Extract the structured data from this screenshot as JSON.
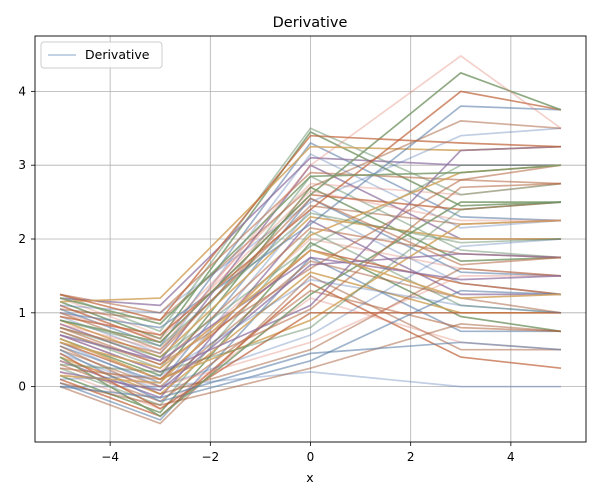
{
  "chart_data": {
    "type": "line",
    "title": "Derivative",
    "xlabel": "x",
    "ylabel": "",
    "xlim": [
      -5.5,
      5.5
    ],
    "ylim": [
      -0.75,
      4.75
    ],
    "xticks": [
      -4,
      -2,
      0,
      2,
      4
    ],
    "yticks": [
      0,
      1,
      2,
      3,
      4
    ],
    "xtick_labels": [
      "−4",
      "−2",
      "0",
      "2",
      "4"
    ],
    "ytick_labels": [
      "0",
      "1",
      "2",
      "3",
      "4"
    ],
    "grid": true,
    "legend": {
      "placement": "top-left",
      "entries": [
        {
          "label": "Derivative",
          "color": "#b0c4de"
        }
      ]
    },
    "palette": [
      "#4c72b0",
      "#a0522d",
      "#5b7fa8",
      "#c0623a",
      "#7a9a6b",
      "#e07b6a",
      "#5f8a62",
      "#b86e4a",
      "#8c6d9e",
      "#d1a25c"
    ],
    "breakpoints": [
      -5,
      -3,
      0,
      3,
      5
    ],
    "series": [
      {
        "y": [
          0.0,
          0.0,
          0.2,
          0.0,
          0.0
        ]
      },
      {
        "y": [
          0.0,
          -0.5,
          1.5,
          0.5,
          0.5
        ]
      },
      {
        "y": [
          0.05,
          -0.45,
          1.75,
          0.75,
          0.75
        ]
      },
      {
        "y": [
          0.1,
          -0.4,
          1.4,
          0.4,
          0.25
        ]
      },
      {
        "y": [
          0.15,
          -0.35,
          1.95,
          0.95,
          0.75
        ]
      },
      {
        "y": [
          0.2,
          -0.3,
          1.2,
          0.6,
          0.5
        ]
      },
      {
        "y": [
          0.25,
          -0.25,
          2.1,
          1.1,
          1.0
        ]
      },
      {
        "y": [
          0.3,
          -0.2,
          1.3,
          0.8,
          0.75
        ]
      },
      {
        "y": [
          0.35,
          -0.15,
          2.25,
          1.25,
          1.25
        ]
      },
      {
        "y": [
          0.4,
          -0.1,
          1.55,
          1.0,
          1.0
        ]
      },
      {
        "y": [
          0.45,
          -0.05,
          2.4,
          1.4,
          1.25
        ]
      },
      {
        "y": [
          0.5,
          0.0,
          1.7,
          1.2,
          1.0
        ]
      },
      {
        "y": [
          0.55,
          0.05,
          2.55,
          1.55,
          1.5
        ]
      },
      {
        "y": [
          0.6,
          0.1,
          1.85,
          1.4,
          1.25
        ]
      },
      {
        "y": [
          0.65,
          0.15,
          2.7,
          1.7,
          1.75
        ]
      },
      {
        "y": [
          0.7,
          0.2,
          2.0,
          1.6,
          1.5
        ]
      },
      {
        "y": [
          0.75,
          0.25,
          2.85,
          1.85,
          1.75
        ]
      },
      {
        "y": [
          0.8,
          0.3,
          2.15,
          1.8,
          1.75
        ]
      },
      {
        "y": [
          0.85,
          0.35,
          3.0,
          2.0,
          2.0
        ]
      },
      {
        "y": [
          0.9,
          0.4,
          2.3,
          2.0,
          2.0
        ]
      },
      {
        "y": [
          0.95,
          0.45,
          3.15,
          2.15,
          2.25
        ]
      },
      {
        "y": [
          1.0,
          0.5,
          2.45,
          2.2,
          2.25
        ]
      },
      {
        "y": [
          1.05,
          0.55,
          3.3,
          2.3,
          2.25
        ]
      },
      {
        "y": [
          1.1,
          0.6,
          2.6,
          2.4,
          2.5
        ]
      },
      {
        "y": [
          1.15,
          0.65,
          3.45,
          2.45,
          2.5
        ]
      },
      {
        "y": [
          1.2,
          0.7,
          2.75,
          2.6,
          2.75
        ]
      },
      {
        "y": [
          1.25,
          0.75,
          3.5,
          2.6,
          2.75
        ]
      },
      {
        "y": [
          1.25,
          1.0,
          2.9,
          2.8,
          3.0
        ]
      },
      {
        "y": [
          1.2,
          1.1,
          3.1,
          3.0,
          3.0
        ]
      },
      {
        "y": [
          1.15,
          1.2,
          3.25,
          3.2,
          3.25
        ]
      },
      {
        "y": [
          1.1,
          1.0,
          2.5,
          3.4,
          3.5
        ]
      },
      {
        "y": [
          1.05,
          0.9,
          2.7,
          3.6,
          3.5
        ]
      },
      {
        "y": [
          1.0,
          0.8,
          2.2,
          3.8,
          3.75
        ]
      },
      {
        "y": [
          0.95,
          0.7,
          2.4,
          4.0,
          3.75
        ]
      },
      {
        "y": [
          0.9,
          0.6,
          2.6,
          4.25,
          3.75
        ]
      },
      {
        "y": [
          0.85,
          0.5,
          3.0,
          4.48,
          3.5
        ]
      },
      {
        "y": [
          0.8,
          0.4,
          1.9,
          3.0,
          3.0
        ]
      },
      {
        "y": [
          0.75,
          0.3,
          1.6,
          2.8,
          2.75
        ]
      },
      {
        "y": [
          0.7,
          0.2,
          1.1,
          3.2,
          3.25
        ]
      },
      {
        "y": [
          0.65,
          0.1,
          0.9,
          2.2,
          2.25
        ]
      },
      {
        "y": [
          0.6,
          0.0,
          0.7,
          1.9,
          2.0
        ]
      },
      {
        "y": [
          0.55,
          -0.1,
          0.5,
          1.6,
          1.5
        ]
      },
      {
        "y": [
          0.5,
          -0.2,
          0.35,
          1.3,
          1.25
        ]
      },
      {
        "y": [
          0.45,
          -0.3,
          1.0,
          1.0,
          1.0
        ]
      },
      {
        "y": [
          0.4,
          -0.4,
          1.25,
          2.5,
          2.5
        ]
      },
      {
        "y": [
          0.35,
          0.0,
          0.6,
          1.5,
          1.5
        ]
      },
      {
        "y": [
          0.3,
          0.2,
          0.8,
          2.4,
          2.5
        ]
      },
      {
        "y": [
          0.25,
          0.1,
          1.05,
          2.7,
          2.75
        ]
      },
      {
        "y": [
          0.2,
          -0.05,
          1.65,
          1.8,
          1.75
        ]
      },
      {
        "y": [
          0.15,
          0.05,
          2.05,
          2.9,
          3.0
        ]
      },
      {
        "y": [
          0.1,
          0.15,
          1.45,
          1.1,
          1.0
        ]
      },
      {
        "y": [
          0.05,
          -0.25,
          0.25,
          0.85,
          0.75
        ]
      },
      {
        "y": [
          0.0,
          -0.15,
          0.45,
          0.6,
          0.5
        ]
      },
      {
        "y": [
          1.25,
          0.9,
          3.4,
          3.3,
          3.25
        ]
      },
      {
        "y": [
          1.2,
          0.85,
          2.85,
          2.9,
          3.0
        ]
      },
      {
        "y": [
          1.0,
          0.65,
          2.65,
          2.25,
          2.25
        ]
      },
      {
        "y": [
          0.9,
          0.55,
          2.35,
          1.95,
          2.0
        ]
      },
      {
        "y": [
          0.8,
          0.45,
          2.55,
          1.65,
          1.75
        ]
      },
      {
        "y": [
          0.7,
          0.35,
          1.75,
          1.45,
          1.5
        ]
      },
      {
        "y": [
          0.6,
          0.25,
          1.85,
          1.2,
          1.25
        ]
      }
    ]
  }
}
